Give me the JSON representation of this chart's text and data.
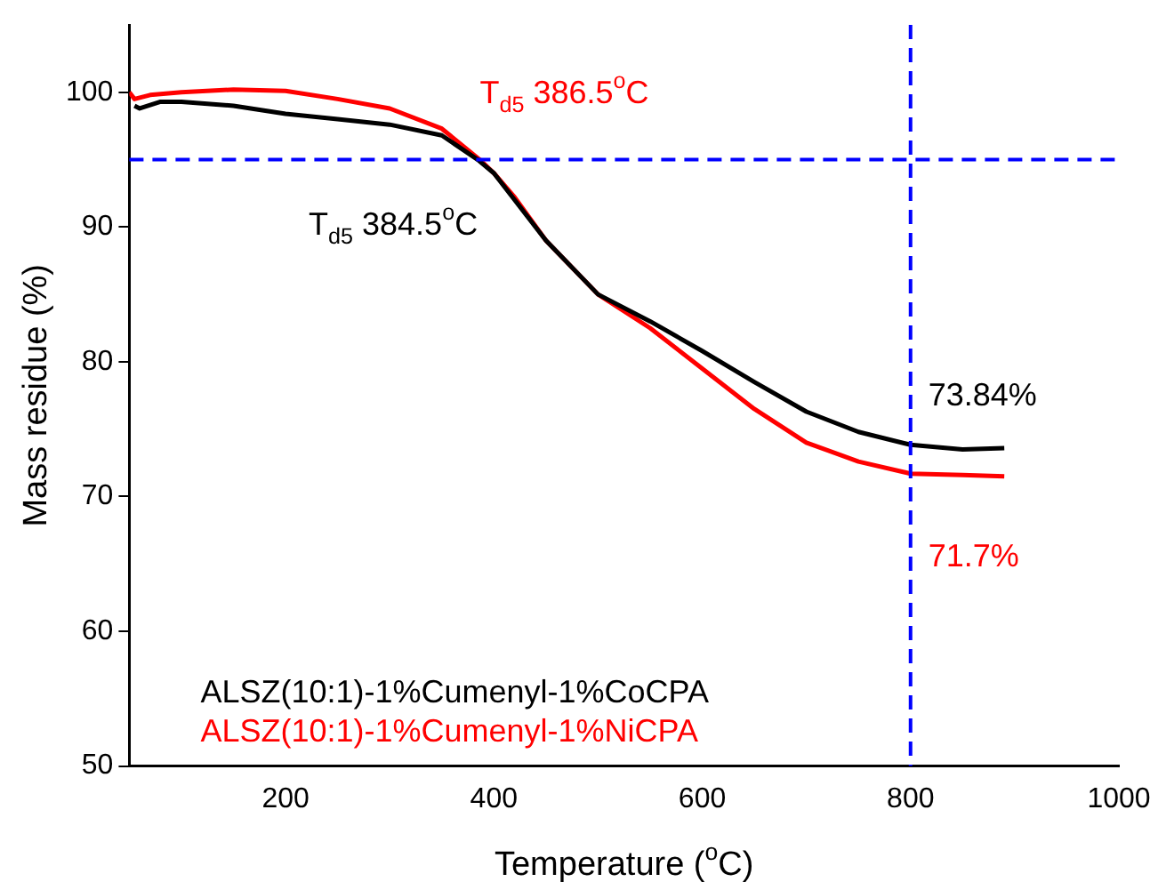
{
  "chart_data": {
    "type": "line",
    "xlabel": "Temperature ($^{o}$C)",
    "ylabel": "Mass residue (%)",
    "xlim": [
      50,
      1000
    ],
    "xticks": [
      200,
      400,
      600,
      800,
      1000
    ],
    "ylim": [
      50,
      105
    ],
    "yticks": [
      50,
      60,
      70,
      80,
      90,
      100
    ],
    "grid": false,
    "legend": "bottom left",
    "marker": "none",
    "line_style": "solid",
    "series": [
      {
        "name": "ALSZ(10:1)-1%Cumenyl-1%CoCPA",
        "color": "#000000",
        "x": [
          55,
          60,
          80,
          100,
          150,
          200,
          250,
          300,
          350,
          384.5,
          400,
          420,
          450,
          500,
          550,
          600,
          650,
          700,
          750,
          800,
          850,
          890
        ],
        "values": [
          99,
          98.8,
          99.3,
          99.3,
          99,
          98.4,
          98,
          97.6,
          96.8,
          95,
          94,
          92,
          89,
          85,
          83,
          80.8,
          78.5,
          76.3,
          74.8,
          73.84,
          73.5,
          73.6
        ]
      },
      {
        "name": "ALSZ(10:1)-1%Cumenyl-1%NiCPA",
        "color": "#ff0000",
        "x": [
          50,
          55,
          70,
          100,
          150,
          200,
          250,
          300,
          350,
          386.5,
          400,
          420,
          450,
          500,
          550,
          600,
          650,
          700,
          750,
          800,
          850,
          890
        ],
        "values": [
          100,
          99.5,
          99.8,
          100,
          100.2,
          100.1,
          99.5,
          98.8,
          97.3,
          95,
          94,
          92.2,
          89,
          85,
          82.5,
          79.5,
          76.5,
          74,
          72.6,
          71.7,
          71.6,
          71.5
        ]
      }
    ],
    "ref_lines": [
      {
        "axis": "y",
        "value": 95,
        "color": "#0000ff",
        "line_style": "dashed"
      },
      {
        "axis": "x",
        "value": 800,
        "color": "#0000ff",
        "line_style": "dashed"
      }
    ],
    "annotations": [
      {
        "text": "T$_{d5}$ 384.5$^{o}$C",
        "x": 384.5,
        "y": 95
      },
      {
        "text": "T$_{d5}$ 386.5$^{o}$C",
        "x": 386.5,
        "y": 95
      },
      {
        "text": "73.84%",
        "x": 800,
        "y": 73.84
      },
      {
        "text": "71.7%",
        "x": 800,
        "y": 71.7
      }
    ]
  }
}
